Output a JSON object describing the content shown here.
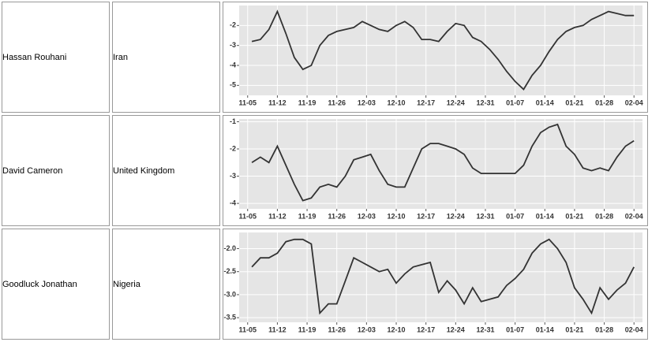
{
  "table": {
    "rows": [
      {
        "name": "Hassan Rouhani",
        "country": "Iran"
      },
      {
        "name": "David Cameron",
        "country": "United Kingdom"
      },
      {
        "name": "Goodluck Jonathan",
        "country": "Nigeria"
      }
    ]
  },
  "chart_data": [
    {
      "type": "line",
      "color": "#333333",
      "grid": true,
      "x": [
        "11-06",
        "11-08",
        "11-10",
        "11-12",
        "11-14",
        "11-16",
        "11-18",
        "11-20",
        "11-22",
        "11-24",
        "11-26",
        "11-28",
        "11-30",
        "12-02",
        "12-04",
        "12-06",
        "12-08",
        "12-10",
        "12-12",
        "12-14",
        "12-16",
        "12-18",
        "12-20",
        "12-22",
        "12-24",
        "12-26",
        "12-28",
        "12-30",
        "01-01",
        "01-03",
        "01-05",
        "01-07",
        "01-09",
        "01-11",
        "01-13",
        "01-15",
        "01-17",
        "01-19",
        "01-21",
        "01-23",
        "01-25",
        "01-27",
        "01-29",
        "01-31",
        "02-02",
        "02-04"
      ],
      "values": [
        -2.8,
        -2.7,
        -2.2,
        -1.3,
        -2.4,
        -3.6,
        -4.2,
        -4.0,
        -3.0,
        -2.5,
        -2.3,
        -2.2,
        -2.1,
        -1.8,
        -2.0,
        -2.2,
        -2.3,
        -2.0,
        -1.8,
        -2.1,
        -2.7,
        -2.7,
        -2.8,
        -2.3,
        -1.9,
        -2.0,
        -2.6,
        -2.8,
        -3.2,
        -3.7,
        -4.3,
        -4.8,
        -5.2,
        -4.5,
        -4.0,
        -3.3,
        -2.7,
        -2.3,
        -2.1,
        -2.0,
        -1.7,
        -1.5,
        -1.3,
        -1.4,
        -1.5,
        -1.5
      ],
      "xlim": [
        "11-03",
        "02-06"
      ],
      "xticks": [
        "11-05",
        "11-12",
        "11-19",
        "11-26",
        "12-03",
        "12-10",
        "12-17",
        "12-24",
        "12-31",
        "01-07",
        "01-14",
        "01-21",
        "01-28",
        "02-04"
      ],
      "ylim": [
        -5.5,
        -1.0
      ],
      "yticks": [
        -5,
        -4,
        -3,
        -2
      ]
    },
    {
      "type": "line",
      "color": "#333333",
      "grid": true,
      "x": [
        "11-06",
        "11-08",
        "11-10",
        "11-12",
        "11-14",
        "11-16",
        "11-18",
        "11-20",
        "11-22",
        "11-24",
        "11-26",
        "11-28",
        "11-30",
        "12-02",
        "12-04",
        "12-06",
        "12-08",
        "12-10",
        "12-12",
        "12-14",
        "12-16",
        "12-18",
        "12-20",
        "12-22",
        "12-24",
        "12-26",
        "12-28",
        "12-30",
        "01-01",
        "01-03",
        "01-05",
        "01-07",
        "01-09",
        "01-11",
        "01-13",
        "01-15",
        "01-17",
        "01-19",
        "01-21",
        "01-23",
        "01-25",
        "01-27",
        "01-29",
        "01-31",
        "02-02",
        "02-04"
      ],
      "values": [
        -2.5,
        -2.3,
        -2.5,
        -1.9,
        -2.6,
        -3.3,
        -3.9,
        -3.8,
        -3.4,
        -3.3,
        -3.4,
        -3.0,
        -2.4,
        -2.3,
        -2.2,
        -2.8,
        -3.3,
        -3.4,
        -3.4,
        -2.7,
        -2.0,
        -1.8,
        -1.8,
        -1.9,
        -2.0,
        -2.2,
        -2.7,
        -2.9,
        -2.9,
        -2.9,
        -2.9,
        -2.9,
        -2.6,
        -1.9,
        -1.4,
        -1.2,
        -1.1,
        -1.9,
        -2.2,
        -2.7,
        -2.8,
        -2.7,
        -2.8,
        -2.3,
        -1.9,
        -1.7
      ],
      "xlim": [
        "11-03",
        "02-06"
      ],
      "xticks": [
        "11-05",
        "11-12",
        "11-19",
        "11-26",
        "12-03",
        "12-10",
        "12-17",
        "12-24",
        "12-31",
        "01-07",
        "01-14",
        "01-21",
        "01-28",
        "02-04"
      ],
      "ylim": [
        -4.2,
        -0.9
      ],
      "yticks": [
        -4,
        -3,
        -2,
        -1
      ]
    },
    {
      "type": "line",
      "color": "#333333",
      "grid": true,
      "x": [
        "11-06",
        "11-08",
        "11-10",
        "11-12",
        "11-14",
        "11-16",
        "11-18",
        "11-20",
        "11-22",
        "11-24",
        "11-26",
        "11-28",
        "11-30",
        "12-02",
        "12-04",
        "12-06",
        "12-08",
        "12-10",
        "12-12",
        "12-14",
        "12-16",
        "12-18",
        "12-20",
        "12-22",
        "12-24",
        "12-26",
        "12-28",
        "12-30",
        "01-01",
        "01-03",
        "01-05",
        "01-07",
        "01-09",
        "01-11",
        "01-13",
        "01-15",
        "01-17",
        "01-19",
        "01-21",
        "01-23",
        "01-25",
        "01-27",
        "01-29",
        "01-31",
        "02-02",
        "02-04"
      ],
      "values": [
        -2.4,
        -2.2,
        -2.2,
        -2.1,
        -1.85,
        -1.8,
        -1.8,
        -1.9,
        -3.4,
        -3.2,
        -3.2,
        -2.7,
        -2.2,
        -2.3,
        -2.4,
        -2.5,
        -2.45,
        -2.75,
        -2.55,
        -2.4,
        -2.35,
        -2.3,
        -2.95,
        -2.7,
        -2.9,
        -3.2,
        -2.85,
        -3.15,
        -3.1,
        -3.05,
        -2.8,
        -2.65,
        -2.45,
        -2.1,
        -1.9,
        -1.8,
        -2.0,
        -2.3,
        -2.85,
        -3.1,
        -3.4,
        -2.85,
        -3.1,
        -2.9,
        -2.75,
        -2.4
      ],
      "xlim": [
        "11-03",
        "02-06"
      ],
      "xticks": [
        "11-05",
        "11-12",
        "11-19",
        "11-26",
        "12-03",
        "12-10",
        "12-17",
        "12-24",
        "12-31",
        "01-07",
        "01-14",
        "01-21",
        "01-28",
        "02-04"
      ],
      "ylim": [
        -3.6,
        -1.65
      ],
      "yticks": [
        {
          "value": -2,
          "label": "-2.0"
        },
        -2.5,
        {
          "value": -3,
          "label": "-3.0"
        },
        -3.5
      ]
    }
  ]
}
